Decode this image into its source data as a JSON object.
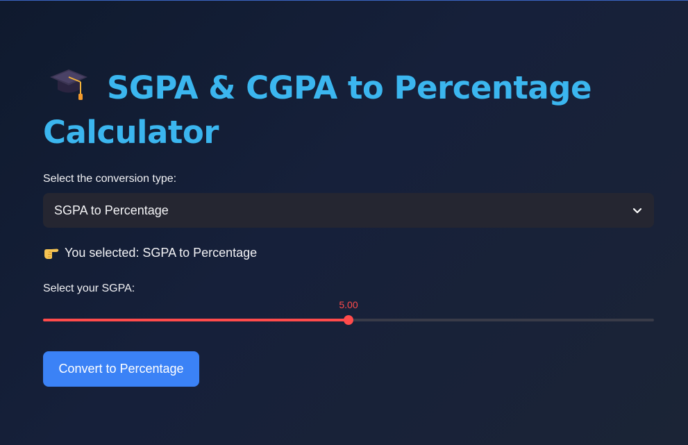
{
  "header": {
    "icon": "graduation-cap-icon",
    "title": "SGPA & CGPA to Percentage Calculator"
  },
  "conversion": {
    "label": "Select the conversion type:",
    "selected": "SGPA to Percentage",
    "selected_message": "You selected: SGPA to Percentage",
    "message_icon": "pointing-hand-icon"
  },
  "sgpa_slider": {
    "label": "Select your SGPA:",
    "value_text": "5.00",
    "value": 5.0,
    "min": 0,
    "max": 10
  },
  "actions": {
    "convert_label": "Convert to Percentage"
  },
  "colors": {
    "title": "#3bb6ef",
    "accent": "#ff4b4b",
    "button": "#3b82f6",
    "select_bg": "#252631"
  }
}
